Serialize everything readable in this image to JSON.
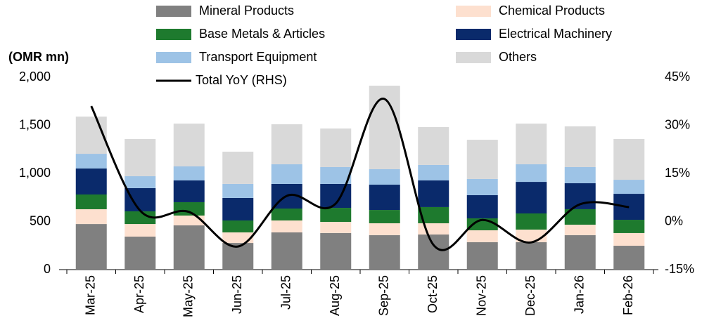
{
  "chart_data": {
    "type": "bar",
    "stacked": true,
    "y_label": "(OMR mn)",
    "categories": [
      "Mar-25",
      "Apr-25",
      "May-25",
      "Jun-25",
      "Jul-25",
      "Aug-25",
      "Sep-25",
      "Oct-25",
      "Nov-25",
      "Dec-25",
      "Jan-26",
      "Feb-26"
    ],
    "series": [
      {
        "name": "Mineral Products",
        "color": "#808080",
        "values": [
          474,
          343,
          460,
          277,
          387,
          380,
          358,
          365,
          285,
          285,
          358,
          248
        ]
      },
      {
        "name": "Chemical Products",
        "color": "#fde0cf",
        "values": [
          154,
          131,
          102,
          110,
          124,
          116,
          124,
          117,
          124,
          131,
          109,
          132
        ]
      },
      {
        "name": "Base Metals & Articles",
        "color": "#1e7a2e",
        "values": [
          153,
          132,
          139,
          124,
          124,
          146,
          138,
          168,
          124,
          168,
          161,
          138
        ]
      },
      {
        "name": "Electrical Machinery",
        "color": "#0a2a6b",
        "values": [
          270,
          241,
          226,
          234,
          256,
          249,
          263,
          277,
          241,
          328,
          270,
          270
        ]
      },
      {
        "name": "Transport Equipment",
        "color": "#9dc3e6",
        "values": [
          153,
          124,
          146,
          146,
          204,
          175,
          161,
          161,
          168,
          183,
          168,
          146
        ]
      },
      {
        "name": "Others",
        "color": "#d9d9d9",
        "values": [
          387,
          387,
          445,
          335,
          416,
          401,
          868,
          394,
          408,
          423,
          423,
          424
        ]
      },
      {
        "name": "Total YoY (RHS)",
        "color": "#000000",
        "type": "line",
        "axis": "y2",
        "values": [
          36.0,
          3.4,
          3.0,
          -7.8,
          8.0,
          5.6,
          38.2,
          -7.3,
          0.5,
          -6.5,
          5.4,
          4.5
        ]
      }
    ],
    "ylim": [
      0,
      2000
    ],
    "yticks": [
      0,
      500,
      {
        "value": 1000,
        "label": "1,000"
      },
      {
        "value": 1500,
        "label": "1,500"
      },
      {
        "value": 2000,
        "label": "2,000"
      }
    ],
    "y2lim": [
      -15,
      45
    ],
    "y2ticks": [
      {
        "value": -15,
        "label": "-15%"
      },
      {
        "value": 0,
        "label": "0%"
      },
      {
        "value": 15,
        "label": "15%"
      },
      {
        "value": 30,
        "label": "30%"
      },
      {
        "value": 45,
        "label": "45%"
      }
    ],
    "legend": "top",
    "grid": false
  }
}
